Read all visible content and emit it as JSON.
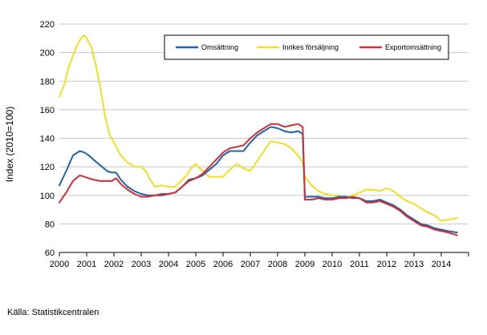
{
  "chart_data": {
    "type": "line",
    "ylabel": "Index (2010=100)",
    "xlabel": "",
    "xlim": [
      2000,
      2015
    ],
    "ylim": [
      60,
      220
    ],
    "y_ticks": [
      60,
      80,
      100,
      120,
      140,
      160,
      180,
      200,
      220
    ],
    "x_ticks": [
      "2000",
      "2001",
      "2002",
      "2003",
      "2004",
      "2005",
      "2006",
      "2007",
      "2008",
      "2009",
      "2010",
      "2011",
      "2012",
      "2013",
      "2014"
    ],
    "grid": "horizontal",
    "legend_position": "top-right",
    "series": [
      {
        "name": "Omsättning",
        "color": "#1f64a8",
        "x": [
          2000.0,
          2000.25,
          2000.5,
          2000.75,
          2000.92,
          2001.08,
          2001.25,
          2001.5,
          2001.75,
          2001.92,
          2002.08,
          2002.25,
          2002.5,
          2002.75,
          2003.0,
          2003.25,
          2003.5,
          2003.75,
          2004.0,
          2004.25,
          2004.5,
          2004.75,
          2005.0,
          2005.25,
          2005.5,
          2005.75,
          2006.0,
          2006.25,
          2006.5,
          2006.75,
          2007.0,
          2007.25,
          2007.5,
          2007.75,
          2008.0,
          2008.25,
          2008.5,
          2008.75,
          2008.92,
          2009.0,
          2009.25,
          2009.5,
          2009.75,
          2010.0,
          2010.25,
          2010.5,
          2010.75,
          2011.0,
          2011.25,
          2011.5,
          2011.75,
          2012.0,
          2012.25,
          2012.5,
          2012.75,
          2013.0,
          2013.25,
          2013.5,
          2013.75,
          2014.0,
          2014.25,
          2014.58
        ],
        "values": [
          107,
          117,
          128,
          131,
          130,
          128,
          125,
          121,
          117,
          116,
          116,
          111,
          106,
          103,
          101,
          100,
          100,
          100,
          101,
          102,
          106,
          111,
          112,
          114,
          118,
          122,
          128,
          131,
          131,
          131,
          137,
          142,
          145,
          148,
          147,
          145,
          144,
          145,
          143,
          99,
          99,
          99,
          98,
          98,
          99,
          99,
          98,
          98,
          96,
          96,
          97,
          95,
          93,
          90,
          86,
          83,
          80,
          79,
          77,
          76,
          75,
          74
        ]
      },
      {
        "name": "Inrikes försäljning",
        "color": "#f0e020",
        "x": [
          2000.0,
          2000.17,
          2000.33,
          2000.5,
          2000.67,
          2000.83,
          2000.92,
          2001.0,
          2001.17,
          2001.33,
          2001.5,
          2001.67,
          2001.83,
          2002.0,
          2002.25,
          2002.5,
          2002.75,
          2003.0,
          2003.17,
          2003.33,
          2003.5,
          2003.75,
          2004.0,
          2004.25,
          2004.5,
          2004.67,
          2004.83,
          2005.0,
          2005.25,
          2005.5,
          2005.75,
          2006.0,
          2006.25,
          2006.5,
          2006.75,
          2007.0,
          2007.25,
          2007.5,
          2007.75,
          2008.0,
          2008.25,
          2008.5,
          2008.75,
          2008.92,
          2009.0,
          2009.25,
          2009.5,
          2009.75,
          2010.0,
          2010.25,
          2010.5,
          2010.75,
          2011.0,
          2011.25,
          2011.5,
          2011.75,
          2012.0,
          2012.25,
          2012.5,
          2012.75,
          2013.0,
          2013.25,
          2013.5,
          2013.75,
          2014.0,
          2014.25,
          2014.58
        ],
        "values": [
          169,
          177,
          189,
          198,
          206,
          211,
          212,
          210,
          204,
          192,
          176,
          156,
          143,
          137,
          128,
          123,
          120,
          120,
          117,
          111,
          106,
          107,
          106,
          106,
          111,
          114,
          119,
          122,
          117,
          113,
          113,
          113,
          118,
          122,
          119,
          117,
          124,
          131,
          138,
          137,
          136,
          133,
          128,
          123,
          113,
          107,
          103,
          101,
          100,
          100,
          98,
          100,
          102,
          104,
          104,
          103,
          105,
          103,
          99,
          96,
          94,
          91,
          88,
          86,
          82,
          83,
          84
        ]
      },
      {
        "name": "Exportomsättning",
        "color": "#d62d34",
        "x": [
          2000.0,
          2000.25,
          2000.5,
          2000.75,
          2000.92,
          2001.08,
          2001.25,
          2001.5,
          2001.75,
          2001.92,
          2002.08,
          2002.25,
          2002.5,
          2002.75,
          2003.0,
          2003.25,
          2003.5,
          2003.75,
          2004.0,
          2004.25,
          2004.5,
          2004.75,
          2005.0,
          2005.25,
          2005.5,
          2005.75,
          2006.0,
          2006.25,
          2006.5,
          2006.75,
          2007.0,
          2007.25,
          2007.5,
          2007.75,
          2008.0,
          2008.25,
          2008.5,
          2008.75,
          2008.92,
          2009.0,
          2009.25,
          2009.5,
          2009.75,
          2010.0,
          2010.25,
          2010.5,
          2010.75,
          2011.0,
          2011.25,
          2011.5,
          2011.75,
          2012.0,
          2012.25,
          2012.5,
          2012.75,
          2013.0,
          2013.25,
          2013.5,
          2013.75,
          2014.0,
          2014.25,
          2014.58
        ],
        "values": [
          95,
          102,
          110,
          114,
          113,
          112,
          111,
          110,
          110,
          110,
          112,
          108,
          104,
          101,
          99,
          99,
          100,
          101,
          101,
          102,
          106,
          110,
          112,
          115,
          120,
          125,
          130,
          133,
          134,
          135,
          140,
          144,
          147,
          150,
          150,
          148,
          149,
          150,
          148,
          97,
          97,
          98,
          97,
          97,
          98,
          98,
          99,
          98,
          95,
          95,
          96,
          94,
          92,
          89,
          85,
          82,
          79,
          78,
          76,
          75,
          74,
          72
        ]
      }
    ]
  },
  "source": "Källa: Statistikcentralen"
}
